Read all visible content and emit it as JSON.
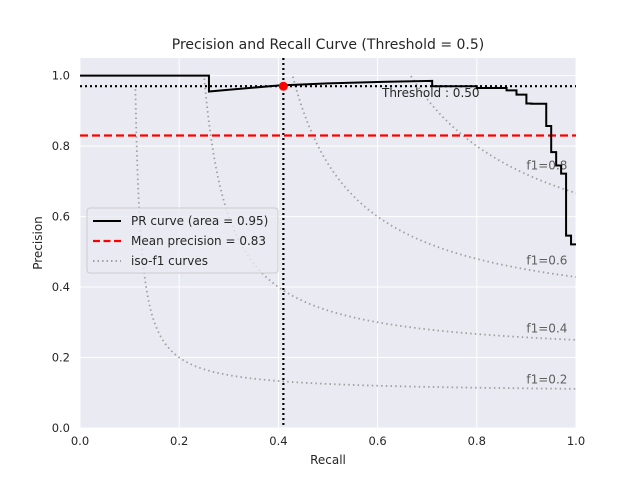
{
  "chart_data": {
    "type": "line",
    "title": "Precision and Recall Curve (Threshold = 0.5)",
    "xlabel": "Recall",
    "ylabel": "Precision",
    "xlim": [
      0,
      1
    ],
    "ylim": [
      0,
      1.05
    ],
    "xticks": [
      0,
      0.2,
      0.4,
      0.6,
      0.8,
      1.0
    ],
    "xtick_labels": [
      "0.0",
      "0.2",
      "0.4",
      "0.6",
      "0.8",
      "1.0"
    ],
    "yticks": [
      0,
      0.2,
      0.4,
      0.6,
      0.8,
      1.0
    ],
    "ytick_labels": [
      "0.0",
      "0.2",
      "0.4",
      "0.6",
      "0.8",
      "1.0"
    ],
    "grid": true,
    "background": "#eaeaf2",
    "legend_position": "center-left",
    "series": [
      {
        "name": "PR curve (area = 0.95)",
        "color": "#000000",
        "style": "solid",
        "x": [
          0.0,
          0.26,
          0.26,
          0.3,
          0.4,
          0.5,
          0.6,
          0.71,
          0.71,
          0.8,
          0.8,
          0.86,
          0.86,
          0.88,
          0.88,
          0.9,
          0.9,
          0.91,
          0.91,
          0.94,
          0.94,
          0.95,
          0.95,
          0.96,
          0.96,
          0.97,
          0.97,
          0.98,
          0.98,
          0.99,
          0.99,
          1.0
        ],
        "y": [
          1.0,
          1.0,
          0.955,
          0.96,
          0.972,
          0.978,
          0.982,
          0.985,
          0.97,
          0.97,
          0.965,
          0.965,
          0.958,
          0.958,
          0.946,
          0.946,
          0.921,
          0.921,
          0.92,
          0.92,
          0.857,
          0.857,
          0.783,
          0.783,
          0.745,
          0.745,
          0.722,
          0.722,
          0.546,
          0.546,
          0.521,
          0.521
        ]
      },
      {
        "name": "Mean precision = 0.83",
        "color": "#ff0000",
        "style": "dashed",
        "y_constant": 0.83
      },
      {
        "name": "iso-f1 curves",
        "color": "#a0a0a0",
        "style": "dotted",
        "f1_values": [
          0.2,
          0.4,
          0.6,
          0.8
        ]
      }
    ],
    "iso_labels": [
      "f1=0.2",
      "f1=0.4",
      "f1=0.6",
      "f1=0.8"
    ],
    "threshold": {
      "label": "Threshold : 0.50",
      "recall": 0.41,
      "precision": 0.97,
      "marker_color": "#ff0000",
      "line_color": "#000000"
    }
  }
}
